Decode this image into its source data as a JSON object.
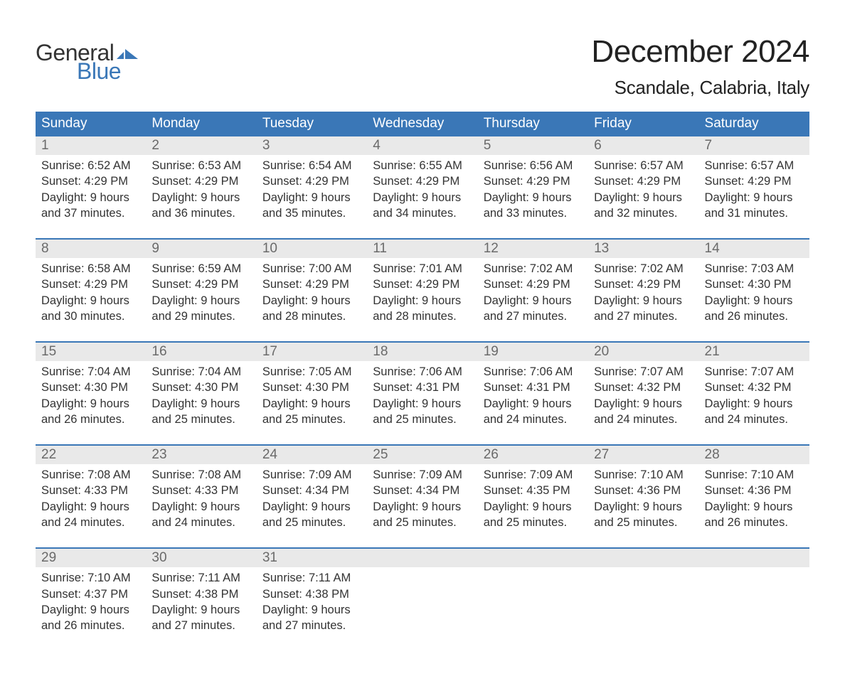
{
  "colors": {
    "header_bg": "#3a77b7",
    "header_text": "#ffffff",
    "daynum_bg": "#e9e9e9",
    "daynum_text": "#6a6a6a",
    "body_text": "#333333",
    "week_border": "#3a77b7",
    "logo_blue": "#3a77b7",
    "background": "#ffffff"
  },
  "typography": {
    "title_fontsize_pt": 33,
    "subtitle_fontsize_pt": 20,
    "weekday_fontsize_pt": 14,
    "daynum_fontsize_pt": 14,
    "body_fontsize_pt": 12,
    "font_family": "Arial"
  },
  "logo": {
    "text_general": "General",
    "text_blue": "Blue"
  },
  "title": "December 2024",
  "location": "Scandale, Calabria, Italy",
  "weekdays": [
    "Sunday",
    "Monday",
    "Tuesday",
    "Wednesday",
    "Thursday",
    "Friday",
    "Saturday"
  ],
  "weeks": [
    {
      "days": [
        {
          "num": "1",
          "sunrise": "Sunrise: 6:52 AM",
          "sunset": "Sunset: 4:29 PM",
          "dl1": "Daylight: 9 hours",
          "dl2": "and 37 minutes."
        },
        {
          "num": "2",
          "sunrise": "Sunrise: 6:53 AM",
          "sunset": "Sunset: 4:29 PM",
          "dl1": "Daylight: 9 hours",
          "dl2": "and 36 minutes."
        },
        {
          "num": "3",
          "sunrise": "Sunrise: 6:54 AM",
          "sunset": "Sunset: 4:29 PM",
          "dl1": "Daylight: 9 hours",
          "dl2": "and 35 minutes."
        },
        {
          "num": "4",
          "sunrise": "Sunrise: 6:55 AM",
          "sunset": "Sunset: 4:29 PM",
          "dl1": "Daylight: 9 hours",
          "dl2": "and 34 minutes."
        },
        {
          "num": "5",
          "sunrise": "Sunrise: 6:56 AM",
          "sunset": "Sunset: 4:29 PM",
          "dl1": "Daylight: 9 hours",
          "dl2": "and 33 minutes."
        },
        {
          "num": "6",
          "sunrise": "Sunrise: 6:57 AM",
          "sunset": "Sunset: 4:29 PM",
          "dl1": "Daylight: 9 hours",
          "dl2": "and 32 minutes."
        },
        {
          "num": "7",
          "sunrise": "Sunrise: 6:57 AM",
          "sunset": "Sunset: 4:29 PM",
          "dl1": "Daylight: 9 hours",
          "dl2": "and 31 minutes."
        }
      ]
    },
    {
      "days": [
        {
          "num": "8",
          "sunrise": "Sunrise: 6:58 AM",
          "sunset": "Sunset: 4:29 PM",
          "dl1": "Daylight: 9 hours",
          "dl2": "and 30 minutes."
        },
        {
          "num": "9",
          "sunrise": "Sunrise: 6:59 AM",
          "sunset": "Sunset: 4:29 PM",
          "dl1": "Daylight: 9 hours",
          "dl2": "and 29 minutes."
        },
        {
          "num": "10",
          "sunrise": "Sunrise: 7:00 AM",
          "sunset": "Sunset: 4:29 PM",
          "dl1": "Daylight: 9 hours",
          "dl2": "and 28 minutes."
        },
        {
          "num": "11",
          "sunrise": "Sunrise: 7:01 AM",
          "sunset": "Sunset: 4:29 PM",
          "dl1": "Daylight: 9 hours",
          "dl2": "and 28 minutes."
        },
        {
          "num": "12",
          "sunrise": "Sunrise: 7:02 AM",
          "sunset": "Sunset: 4:29 PM",
          "dl1": "Daylight: 9 hours",
          "dl2": "and 27 minutes."
        },
        {
          "num": "13",
          "sunrise": "Sunrise: 7:02 AM",
          "sunset": "Sunset: 4:29 PM",
          "dl1": "Daylight: 9 hours",
          "dl2": "and 27 minutes."
        },
        {
          "num": "14",
          "sunrise": "Sunrise: 7:03 AM",
          "sunset": "Sunset: 4:30 PM",
          "dl1": "Daylight: 9 hours",
          "dl2": "and 26 minutes."
        }
      ]
    },
    {
      "days": [
        {
          "num": "15",
          "sunrise": "Sunrise: 7:04 AM",
          "sunset": "Sunset: 4:30 PM",
          "dl1": "Daylight: 9 hours",
          "dl2": "and 26 minutes."
        },
        {
          "num": "16",
          "sunrise": "Sunrise: 7:04 AM",
          "sunset": "Sunset: 4:30 PM",
          "dl1": "Daylight: 9 hours",
          "dl2": "and 25 minutes."
        },
        {
          "num": "17",
          "sunrise": "Sunrise: 7:05 AM",
          "sunset": "Sunset: 4:30 PM",
          "dl1": "Daylight: 9 hours",
          "dl2": "and 25 minutes."
        },
        {
          "num": "18",
          "sunrise": "Sunrise: 7:06 AM",
          "sunset": "Sunset: 4:31 PM",
          "dl1": "Daylight: 9 hours",
          "dl2": "and 25 minutes."
        },
        {
          "num": "19",
          "sunrise": "Sunrise: 7:06 AM",
          "sunset": "Sunset: 4:31 PM",
          "dl1": "Daylight: 9 hours",
          "dl2": "and 24 minutes."
        },
        {
          "num": "20",
          "sunrise": "Sunrise: 7:07 AM",
          "sunset": "Sunset: 4:32 PM",
          "dl1": "Daylight: 9 hours",
          "dl2": "and 24 minutes."
        },
        {
          "num": "21",
          "sunrise": "Sunrise: 7:07 AM",
          "sunset": "Sunset: 4:32 PM",
          "dl1": "Daylight: 9 hours",
          "dl2": "and 24 minutes."
        }
      ]
    },
    {
      "days": [
        {
          "num": "22",
          "sunrise": "Sunrise: 7:08 AM",
          "sunset": "Sunset: 4:33 PM",
          "dl1": "Daylight: 9 hours",
          "dl2": "and 24 minutes."
        },
        {
          "num": "23",
          "sunrise": "Sunrise: 7:08 AM",
          "sunset": "Sunset: 4:33 PM",
          "dl1": "Daylight: 9 hours",
          "dl2": "and 24 minutes."
        },
        {
          "num": "24",
          "sunrise": "Sunrise: 7:09 AM",
          "sunset": "Sunset: 4:34 PM",
          "dl1": "Daylight: 9 hours",
          "dl2": "and 25 minutes."
        },
        {
          "num": "25",
          "sunrise": "Sunrise: 7:09 AM",
          "sunset": "Sunset: 4:34 PM",
          "dl1": "Daylight: 9 hours",
          "dl2": "and 25 minutes."
        },
        {
          "num": "26",
          "sunrise": "Sunrise: 7:09 AM",
          "sunset": "Sunset: 4:35 PM",
          "dl1": "Daylight: 9 hours",
          "dl2": "and 25 minutes."
        },
        {
          "num": "27",
          "sunrise": "Sunrise: 7:10 AM",
          "sunset": "Sunset: 4:36 PM",
          "dl1": "Daylight: 9 hours",
          "dl2": "and 25 minutes."
        },
        {
          "num": "28",
          "sunrise": "Sunrise: 7:10 AM",
          "sunset": "Sunset: 4:36 PM",
          "dl1": "Daylight: 9 hours",
          "dl2": "and 26 minutes."
        }
      ]
    },
    {
      "days": [
        {
          "num": "29",
          "sunrise": "Sunrise: 7:10 AM",
          "sunset": "Sunset: 4:37 PM",
          "dl1": "Daylight: 9 hours",
          "dl2": "and 26 minutes."
        },
        {
          "num": "30",
          "sunrise": "Sunrise: 7:11 AM",
          "sunset": "Sunset: 4:38 PM",
          "dl1": "Daylight: 9 hours",
          "dl2": "and 27 minutes."
        },
        {
          "num": "31",
          "sunrise": "Sunrise: 7:11 AM",
          "sunset": "Sunset: 4:38 PM",
          "dl1": "Daylight: 9 hours",
          "dl2": "and 27 minutes."
        },
        {
          "num": "",
          "sunrise": "",
          "sunset": "",
          "dl1": "",
          "dl2": ""
        },
        {
          "num": "",
          "sunrise": "",
          "sunset": "",
          "dl1": "",
          "dl2": ""
        },
        {
          "num": "",
          "sunrise": "",
          "sunset": "",
          "dl1": "",
          "dl2": ""
        },
        {
          "num": "",
          "sunrise": "",
          "sunset": "",
          "dl1": "",
          "dl2": ""
        }
      ]
    }
  ]
}
